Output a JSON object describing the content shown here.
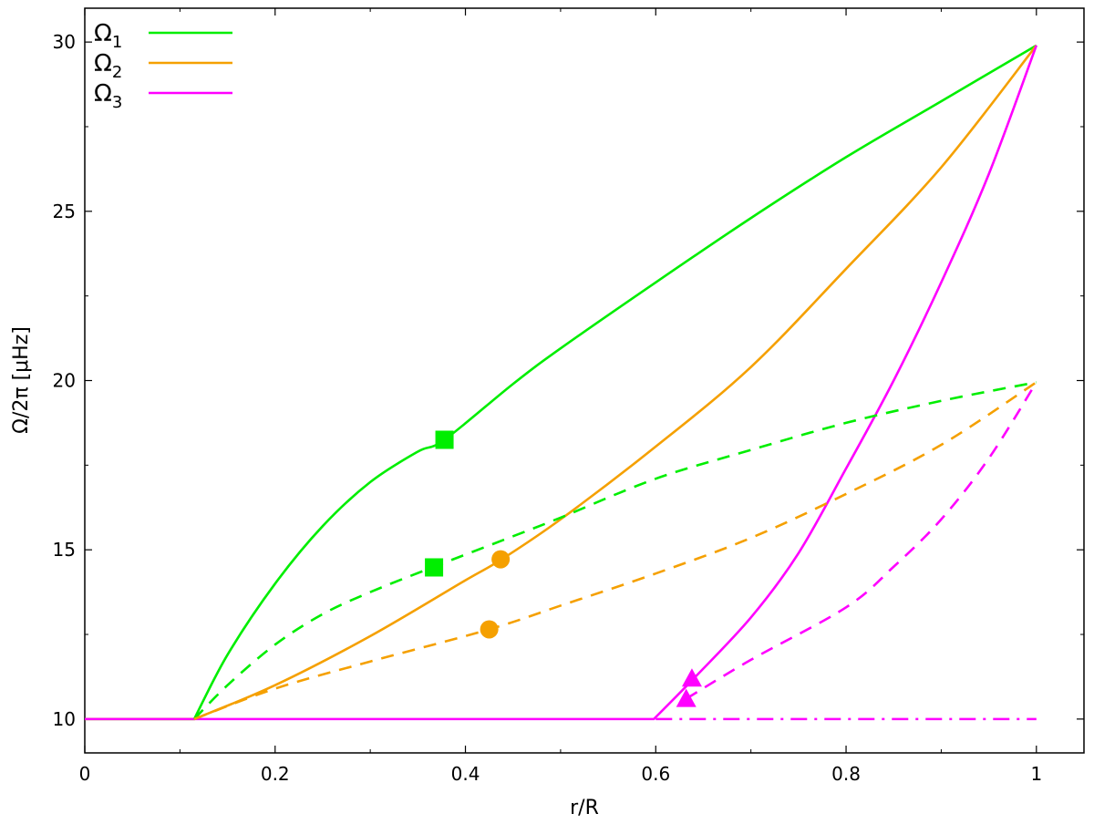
{
  "chart_data": {
    "type": "line",
    "xlabel": "r/R",
    "ylabel": "Ω/2π [μHz]",
    "xlim": [
      0,
      1.05
    ],
    "ylim": [
      9.0,
      31.0
    ],
    "x_ticks": [
      0,
      0.2,
      0.4,
      0.6,
      0.8,
      1
    ],
    "x_tick_labels": [
      "0",
      "0.2",
      "0.4",
      "0.6",
      "0.8",
      "1"
    ],
    "y_ticks": [
      10,
      15,
      20,
      25,
      30
    ],
    "y_tick_labels": [
      "10",
      "15",
      "20",
      "25",
      "30"
    ],
    "legend_position": "top-left",
    "colors": {
      "omega1": "#00ee00",
      "omega2": "#f5a000",
      "omega3": "#ff00ff"
    },
    "series": [
      {
        "name": "Ω",
        "subscript": "1",
        "color": "#00ee00",
        "style": "solid",
        "x": [
          0,
          0.115,
          0.15,
          0.2,
          0.25,
          0.3,
          0.35,
          0.378,
          0.45,
          0.5,
          0.6,
          0.7,
          0.8,
          0.9,
          1.0
        ],
        "y": [
          10.0,
          10.0,
          11.9,
          14.0,
          15.7,
          17.0,
          17.9,
          18.25,
          19.9,
          20.95,
          22.9,
          24.8,
          26.6,
          28.25,
          29.9
        ]
      },
      {
        "name": "Ω",
        "subscript": "2",
        "color": "#f5a000",
        "style": "solid",
        "x": [
          0,
          0.115,
          0.2,
          0.3,
          0.4,
          0.437,
          0.5,
          0.6,
          0.7,
          0.8,
          0.9,
          1.0
        ],
        "y": [
          10.0,
          10.0,
          11.0,
          12.45,
          14.1,
          14.7,
          15.9,
          18.05,
          20.4,
          23.3,
          26.3,
          29.9
        ]
      },
      {
        "name": "Ω",
        "subscript": "3",
        "color": "#ff00ff",
        "style": "solid",
        "x": [
          0,
          0.598,
          0.64,
          0.7,
          0.75,
          0.8,
          0.85,
          0.9,
          0.95,
          1.0
        ],
        "y": [
          10.0,
          10.0,
          11.2,
          13.0,
          14.9,
          17.4,
          20.0,
          22.9,
          26.1,
          29.9
        ]
      },
      {
        "color": "#00ee00",
        "style": "dashed",
        "x": [
          0.115,
          0.15,
          0.2,
          0.25,
          0.3,
          0.367,
          0.45,
          0.5,
          0.6,
          0.7,
          0.8,
          0.9,
          1.0
        ],
        "y": [
          10.0,
          11.0,
          12.2,
          13.1,
          13.75,
          14.5,
          15.4,
          15.95,
          17.1,
          17.95,
          18.75,
          19.4,
          19.95
        ]
      },
      {
        "color": "#f5a000",
        "style": "dashed",
        "x": [
          0.115,
          0.2,
          0.3,
          0.425,
          0.5,
          0.6,
          0.7,
          0.8,
          0.9,
          1.0
        ],
        "y": [
          10.0,
          10.9,
          11.7,
          12.65,
          13.35,
          14.3,
          15.35,
          16.65,
          18.1,
          19.95
        ]
      },
      {
        "color": "#ff00ff",
        "style": "dashed",
        "x": [
          0.632,
          0.7,
          0.8,
          0.85,
          0.9,
          0.95,
          1.0
        ],
        "y": [
          10.6,
          11.75,
          13.3,
          14.5,
          15.9,
          17.7,
          19.95
        ]
      },
      {
        "color": "#ff00ff",
        "style": "dashdot",
        "x": [
          0.6,
          1.0
        ],
        "y": [
          10.0,
          10.0
        ]
      }
    ],
    "markers": [
      {
        "shape": "square",
        "color": "#00ee00",
        "x": 0.378,
        "y": 18.25
      },
      {
        "shape": "square",
        "color": "#00ee00",
        "x": 0.367,
        "y": 14.48
      },
      {
        "shape": "circle",
        "color": "#f5a000",
        "x": 0.437,
        "y": 14.72
      },
      {
        "shape": "circle",
        "color": "#f5a000",
        "x": 0.425,
        "y": 12.65
      },
      {
        "shape": "triangle",
        "color": "#ff00ff",
        "x": 0.638,
        "y": 11.2
      },
      {
        "shape": "triangle",
        "color": "#ff00ff",
        "x": 0.632,
        "y": 10.6
      }
    ]
  }
}
